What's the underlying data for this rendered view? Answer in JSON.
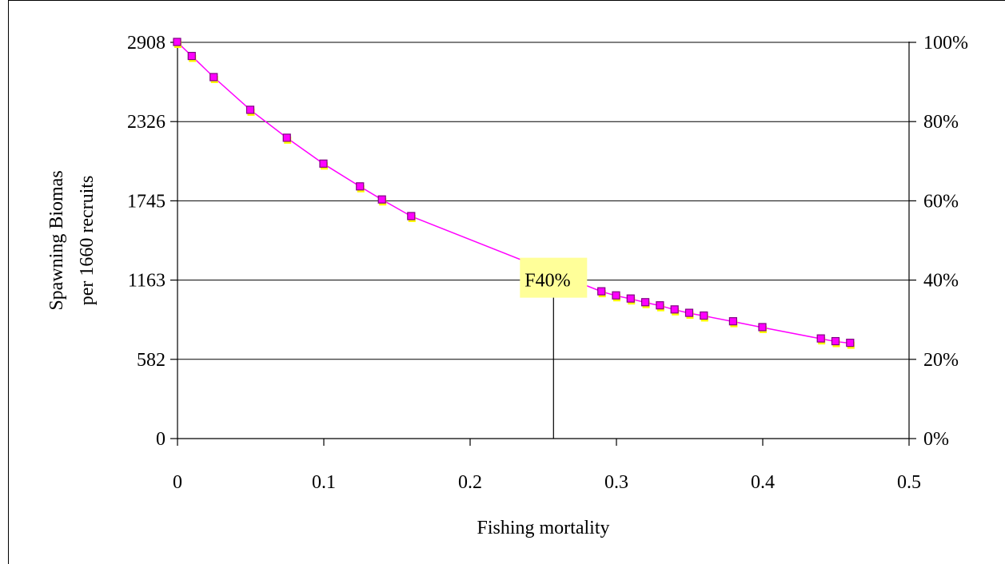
{
  "chart_data": {
    "type": "line",
    "xlabel": "Fishing mortality",
    "ylabel": [
      "Spawning Biomas",
      "per 1660 recruits"
    ],
    "xlim": [
      0,
      0.5
    ],
    "ylim": [
      0,
      2908
    ],
    "x_ticks": [
      "0",
      "0.1",
      "0.2",
      "0.3",
      "0.4",
      "0.5"
    ],
    "y_ticks_left": [
      "0",
      "582",
      "1163",
      "1745",
      "2326",
      "2908"
    ],
    "y_ticks_right": [
      "0%",
      "20%",
      "40%",
      "60%",
      "80%",
      "100%"
    ],
    "grid": "horizontal",
    "series": [
      {
        "x": [
          0,
          0.01,
          0.025,
          0.05,
          0.075,
          0.1,
          0.125,
          0.14,
          0.16,
          0.29,
          0.3,
          0.31,
          0.32,
          0.33,
          0.34,
          0.35,
          0.36,
          0.38,
          0.4,
          0.44,
          0.45,
          0.46
        ],
        "y": [
          2908,
          2805,
          2650,
          2410,
          2205,
          2015,
          1848,
          1752,
          1630,
          1078,
          1048,
          1025,
          998,
          975,
          945,
          920,
          900,
          858,
          815,
          732,
          712,
          700
        ]
      }
    ],
    "colors": {
      "line": "#ff00ff",
      "marker_fill": "#ff00ff",
      "marker_edge": "#800080",
      "marker_shadow": "#ffff00",
      "annotation_bg": "#ffff99"
    },
    "annotation": {
      "text": "F40%",
      "x": 0.257,
      "y": 1163
    }
  }
}
